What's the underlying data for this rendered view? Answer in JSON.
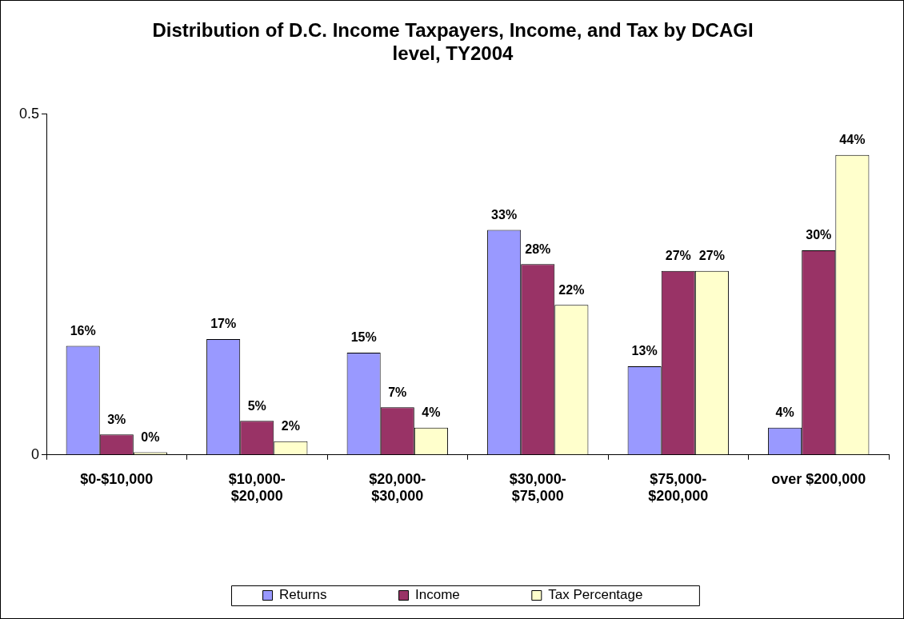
{
  "chart_data": {
    "type": "bar",
    "title": "Distribution of D.C. Income Taxpayers, Income, and Tax by DCAGI level, TY2004",
    "categories": [
      "$0-$10,000",
      "$10,000-$20,000",
      "$20,000-$30,000",
      "$30,000-$75,000",
      "$75,000-$200,000",
      "over $200,000"
    ],
    "series": [
      {
        "name": "Returns",
        "color": "#9999ff",
        "values": [
          0.16,
          0.17,
          0.15,
          0.33,
          0.13,
          0.04
        ],
        "value_labels": [
          "16%",
          "17%",
          "15%",
          "33%",
          "13%",
          "4%"
        ]
      },
      {
        "name": "Income",
        "color": "#993366",
        "values": [
          0.03,
          0.05,
          0.07,
          0.28,
          0.27,
          0.3
        ],
        "value_labels": [
          "3%",
          "5%",
          "7%",
          "28%",
          "27%",
          "30%"
        ]
      },
      {
        "name": "Tax Percentage",
        "color": "#ffffcc",
        "values": [
          0.004,
          0.02,
          0.04,
          0.22,
          0.27,
          0.44
        ],
        "value_labels": [
          "0%",
          "2%",
          "4%",
          "22%",
          "27%",
          "44%"
        ]
      }
    ],
    "ylim": [
      0,
      0.5
    ],
    "yticks": [
      0,
      0.5
    ],
    "grid": false,
    "legend": "bottom"
  }
}
